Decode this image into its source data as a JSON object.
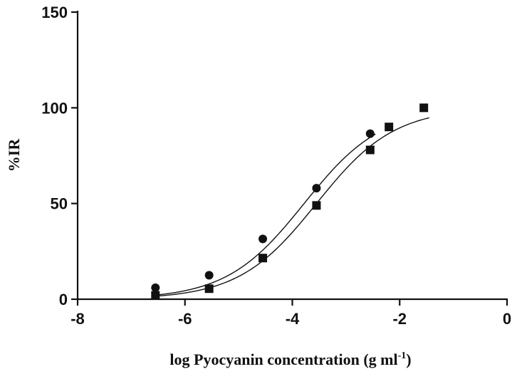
{
  "chart_data": {
    "type": "scatter",
    "title": "",
    "xlabel": "log Pyocyanin concentration (g ml",
    "xlabel_superscript": "-1",
    "xlabel_suffix": ")",
    "ylabel": "%IR",
    "xlim": [
      -8,
      0
    ],
    "ylim": [
      0,
      150
    ],
    "x_ticks": [
      -8,
      -6,
      -4,
      -2,
      0
    ],
    "y_ticks": [
      0,
      50,
      100,
      150
    ],
    "grid": false,
    "legend": "none",
    "series": [
      {
        "marker": "circle",
        "color": "#111111",
        "x": [
          -6.55,
          -5.55,
          -4.55,
          -3.55,
          -2.55
        ],
        "y": [
          6,
          12.5,
          31.5,
          58,
          86.5
        ],
        "fit": {
          "type": "sigmoid",
          "top": 100,
          "bottom": 0,
          "logEC50": -3.78,
          "hill": 0.6
        }
      },
      {
        "marker": "square",
        "color": "#111111",
        "x": [
          -6.55,
          -5.55,
          -4.55,
          -3.55,
          -2.55,
          -2.2,
          -1.55
        ],
        "y": [
          2,
          5.5,
          21.5,
          49,
          78,
          90,
          100
        ],
        "fit": {
          "type": "sigmoid",
          "top": 100,
          "bottom": 0,
          "logEC50": -3.55,
          "hill": 0.6
        }
      }
    ]
  }
}
